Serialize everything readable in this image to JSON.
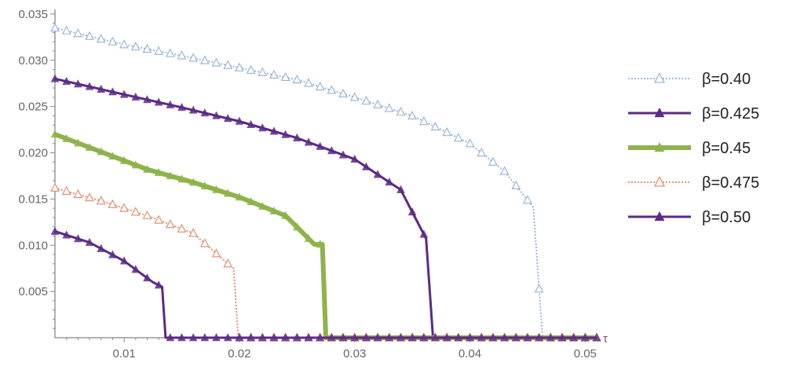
{
  "chart_data": {
    "type": "line",
    "title": "",
    "xlabel": "τ",
    "ylabel": "",
    "xlim": [
      0.004,
      0.051
    ],
    "ylim": [
      0.0,
      0.0355
    ],
    "x_ticks": [
      {
        "value": 0.01,
        "label": "0.01"
      },
      {
        "value": 0.02,
        "label": "0.02"
      },
      {
        "value": 0.03,
        "label": "0.03"
      },
      {
        "value": 0.04,
        "label": "0.04"
      },
      {
        "value": 0.05,
        "label": "0.05"
      }
    ],
    "y_ticks": [
      {
        "value": 0.005,
        "label": "0.005"
      },
      {
        "value": 0.01,
        "label": "0.010"
      },
      {
        "value": 0.015,
        "label": "0.015"
      },
      {
        "value": 0.02,
        "label": "0.020"
      },
      {
        "value": 0.025,
        "label": "0.025"
      },
      {
        "value": 0.03,
        "label": "0.030"
      },
      {
        "value": 0.035,
        "label": "0.035"
      }
    ],
    "grid": false,
    "legend_position": "right",
    "series": [
      {
        "name": "β=0.40",
        "color": "#95b1d6",
        "style": "dotted",
        "marker": "open-triangle",
        "x": [
          0.004,
          0.01,
          0.015,
          0.02,
          0.025,
          0.03,
          0.035,
          0.04,
          0.043,
          0.0455,
          0.0463,
          0.051
        ],
        "y": [
          0.0335,
          0.0317,
          0.0305,
          0.0292,
          0.0279,
          0.026,
          0.024,
          0.021,
          0.018,
          0.0141,
          0.0,
          0.0
        ]
      },
      {
        "name": "β=0.425",
        "color": "#5b2a86",
        "style": "solid",
        "marker": "filled-triangle",
        "x": [
          0.004,
          0.01,
          0.015,
          0.02,
          0.025,
          0.03,
          0.034,
          0.0362,
          0.0368,
          0.051
        ],
        "y": [
          0.028,
          0.0263,
          0.0249,
          0.0234,
          0.0216,
          0.0193,
          0.016,
          0.0107,
          0.0,
          0.0
        ]
      },
      {
        "name": "β=0.45",
        "color": "#8db34a",
        "style": "solid-thick",
        "marker": "filled-triangle",
        "x": [
          0.004,
          0.008,
          0.012,
          0.016,
          0.02,
          0.024,
          0.0265,
          0.0272,
          0.0275,
          0.051
        ],
        "y": [
          0.022,
          0.0201,
          0.0182,
          0.0168,
          0.0152,
          0.0132,
          0.0101,
          0.0101,
          0.0,
          0.0
        ]
      },
      {
        "name": "β=0.475",
        "color": "#e0896a",
        "style": "dotted",
        "marker": "open-triangle",
        "x": [
          0.004,
          0.008,
          0.012,
          0.016,
          0.019,
          0.0195,
          0.0199,
          0.051
        ],
        "y": [
          0.0162,
          0.0148,
          0.0132,
          0.0113,
          0.008,
          0.0075,
          0.0,
          0.0
        ]
      },
      {
        "name": "β=0.50",
        "color": "#5b2a86",
        "style": "solid",
        "marker": "filled-triangle",
        "x": [
          0.004,
          0.007,
          0.01,
          0.0125,
          0.0133,
          0.0136,
          0.051
        ],
        "y": [
          0.0115,
          0.0103,
          0.0083,
          0.006,
          0.0055,
          0.0,
          0.0
        ]
      }
    ]
  }
}
